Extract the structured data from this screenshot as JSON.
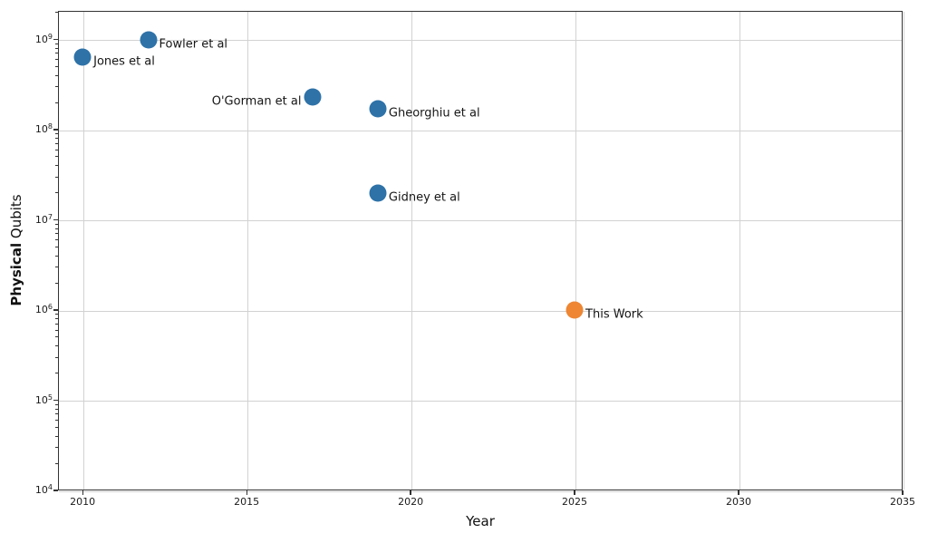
{
  "chart_data": {
    "type": "scatter",
    "title": "",
    "xlabel": "Year",
    "ylabel_bold": "Physical",
    "ylabel_regular": "Qubits",
    "y_scale": "log",
    "grid": true,
    "legend": "none",
    "xlim": [
      2009.25,
      2035
    ],
    "ylim_log10": [
      4,
      9.3166
    ],
    "x_ticks": [
      2010,
      2015,
      2020,
      2025,
      2030,
      2035
    ],
    "y_tick_base": "10",
    "y_tick_exponents": [
      4,
      5,
      6,
      7,
      8,
      9
    ],
    "colors": {
      "prior_work": "#2e72a8",
      "this_work": "#ee8633",
      "grid": "#d2d2d2",
      "spine": "#333333"
    },
    "points": [
      {
        "label": "Jones et al",
        "year": 2010,
        "qubits": 630000000,
        "color": "#2e72a8",
        "label_side": "right"
      },
      {
        "label": "Fowler et al",
        "year": 2012,
        "qubits": 1000000000,
        "color": "#2e72a8",
        "label_side": "right"
      },
      {
        "label": "O'Gorman et al",
        "year": 2017,
        "qubits": 230000000,
        "color": "#2e72a8",
        "label_side": "left"
      },
      {
        "label": "Gheorghiu et al",
        "year": 2019,
        "qubits": 170000000,
        "color": "#2e72a8",
        "label_side": "right"
      },
      {
        "label": "Gidney et al",
        "year": 2019,
        "qubits": 20000000,
        "color": "#2e72a8",
        "label_side": "right"
      },
      {
        "label": "This Work",
        "year": 2025,
        "qubits": 1000000,
        "color": "#ee8633",
        "label_side": "right"
      }
    ]
  }
}
